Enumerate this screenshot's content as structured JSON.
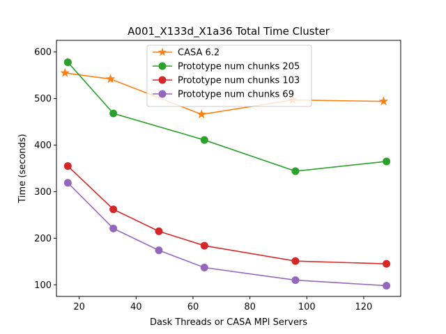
{
  "chart_data": {
    "type": "line",
    "title": "A001_X133d_X1a36 Total Time Cluster",
    "xlabel": "Dask Threads or CASA MPI Servers",
    "ylabel": "Time (seconds)",
    "xlim": [
      12,
      133
    ],
    "ylim": [
      75,
      625
    ],
    "xticks": [
      20,
      40,
      60,
      80,
      100,
      120
    ],
    "yticks": [
      100,
      200,
      300,
      400,
      500,
      600
    ],
    "grid": false,
    "legend_position": "top-center",
    "series": [
      {
        "name": "CASA 6.2",
        "color": "#ff7f0e",
        "marker": "star",
        "x": [
          15,
          31,
          63,
          95,
          127
        ],
        "y": [
          555,
          542,
          466,
          497,
          494
        ]
      },
      {
        "name": "Prototype num chunks 205",
        "color": "#2ca02c",
        "marker": "circle",
        "x": [
          16,
          32,
          64,
          96,
          128
        ],
        "y": [
          578,
          468,
          411,
          344,
          365
        ]
      },
      {
        "name": "Prototype num chunks 103",
        "color": "#d62728",
        "marker": "circle",
        "x": [
          16,
          32,
          48,
          64,
          96,
          128
        ],
        "y": [
          355,
          262,
          215,
          184,
          151,
          145
        ]
      },
      {
        "name": "Prototype num chunks 69",
        "color": "#9467bd",
        "marker": "circle",
        "x": [
          16,
          32,
          48,
          64,
          96,
          128
        ],
        "y": [
          319,
          221,
          174,
          137,
          110,
          98
        ]
      }
    ]
  }
}
